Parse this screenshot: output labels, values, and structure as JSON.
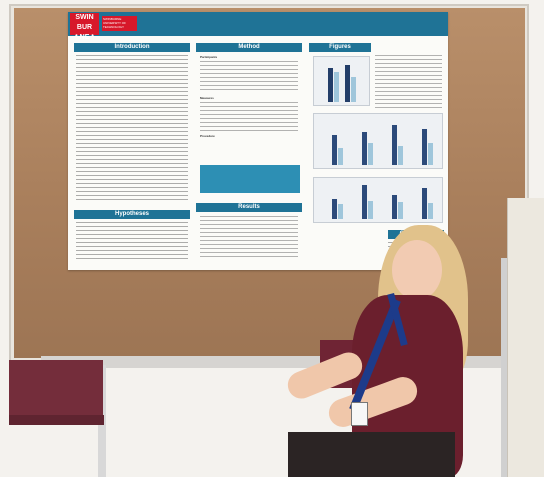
{
  "poster": {
    "logo_text": "SWIN\nBUR\n* NE *",
    "logo_subtext": "SWINBURNE UNIVERSITY OF TECHNOLOGY",
    "sections": {
      "introduction": "Introduction",
      "method": "Method",
      "figures": "Figures",
      "hypotheses": "Hypotheses",
      "results": "Results",
      "conclusion": "Conclusion"
    },
    "method_subheads": [
      "Participants",
      "Measures",
      "Procedure"
    ]
  },
  "colors": {
    "poster_blue": "#1f7396",
    "logo_red": "#d7182a",
    "corkboard": "#a97f5c",
    "chair": "#742d3b",
    "lanyard": "#1d3b8a"
  }
}
